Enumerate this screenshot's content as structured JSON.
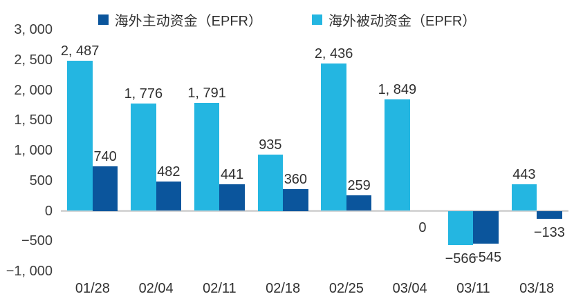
{
  "legend": [
    {
      "label": "海外主动资金（EPFR）",
      "color": "#0B559C",
      "swatch": "dark-blue-square"
    },
    {
      "label": "海外被动资金（EPFR）",
      "color": "#24B6E1",
      "swatch": "light-blue-square"
    }
  ],
  "chart_data": {
    "type": "bar",
    "title": "",
    "xlabel": "",
    "ylabel": "",
    "categories": [
      "01/28",
      "02/04",
      "02/11",
      "02/18",
      "02/25",
      "03/04",
      "03/11",
      "03/18"
    ],
    "series": [
      {
        "name": "海外被动资金（EPFR）",
        "color": "#24B6E1",
        "values": [
          2487,
          1776,
          1791,
          935,
          2436,
          1849,
          -566,
          443
        ],
        "labels": [
          "2, 487",
          "1, 776",
          "1, 791",
          "935",
          "2, 436",
          "1, 849",
          "−566",
          "443"
        ]
      },
      {
        "name": "海外主动资金（EPFR）",
        "color": "#0B559C",
        "values": [
          740,
          482,
          441,
          360,
          259,
          0,
          -545,
          -133
        ],
        "labels": [
          "740",
          "482",
          "441",
          "360",
          "259",
          "0",
          "−545",
          "−133"
        ]
      }
    ],
    "ylim": [
      -1000,
      3000
    ],
    "yticks": [
      {
        "value": 3000,
        "label": "3, 000"
      },
      {
        "value": 2500,
        "label": "2, 500"
      },
      {
        "value": 2000,
        "label": "2, 000"
      },
      {
        "value": 1500,
        "label": "1, 500"
      },
      {
        "value": 1000,
        "label": "1, 000"
      },
      {
        "value": 500,
        "label": "500"
      },
      {
        "value": 0,
        "label": "0"
      },
      {
        "value": -500,
        "label": "−500"
      },
      {
        "value": -1000,
        "label": "−1, 000"
      }
    ],
    "grid": "zero-line-only",
    "legend_position": "top"
  }
}
